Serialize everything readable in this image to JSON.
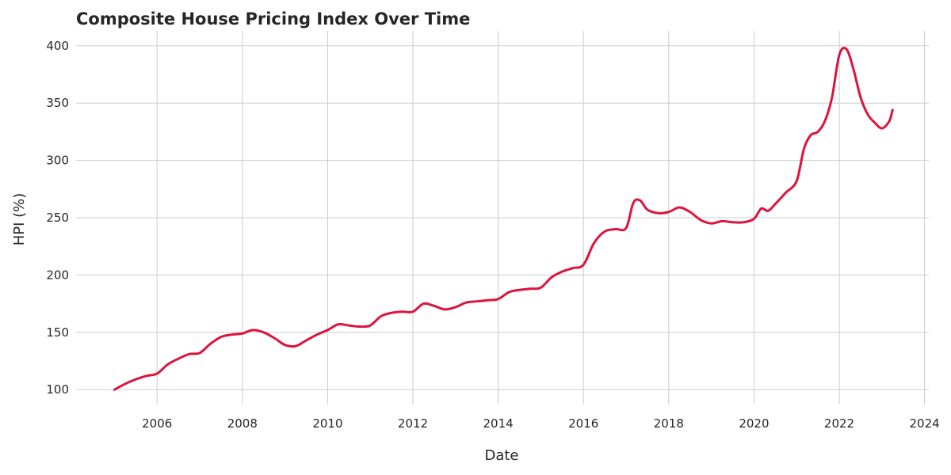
{
  "chart_data": {
    "type": "line",
    "title": "Composite House Pricing Index Over Time",
    "xlabel": "Date",
    "ylabel": "HPI (%)",
    "xlim": [
      2004.1,
      2024.1
    ],
    "ylim": [
      87,
      413
    ],
    "x_ticks": [
      2006,
      2008,
      2010,
      2012,
      2014,
      2016,
      2018,
      2020,
      2022,
      2024
    ],
    "x_tick_labels": [
      "2006",
      "2008",
      "2010",
      "2012",
      "2014",
      "2016",
      "2018",
      "2020",
      "2022",
      "2024"
    ],
    "y_ticks": [
      100,
      150,
      200,
      250,
      300,
      350,
      400
    ],
    "y_tick_labels": [
      "100",
      "150",
      "200",
      "250",
      "300",
      "350",
      "400"
    ],
    "grid": true,
    "series": [
      {
        "color": "#dc143c",
        "x": [
          2005.0,
          2005.25,
          2005.5,
          2005.75,
          2006.0,
          2006.25,
          2006.5,
          2006.75,
          2007.0,
          2007.25,
          2007.5,
          2007.75,
          2008.0,
          2008.25,
          2008.5,
          2008.75,
          2009.0,
          2009.25,
          2009.5,
          2009.75,
          2010.0,
          2010.25,
          2010.5,
          2010.75,
          2011.0,
          2011.25,
          2011.5,
          2011.75,
          2012.0,
          2012.25,
          2012.5,
          2012.75,
          2013.0,
          2013.25,
          2013.5,
          2013.75,
          2014.0,
          2014.25,
          2014.5,
          2014.75,
          2015.0,
          2015.25,
          2015.5,
          2015.75,
          2016.0,
          2016.25,
          2016.5,
          2016.75,
          2017.0,
          2017.17,
          2017.33,
          2017.5,
          2017.75,
          2018.0,
          2018.25,
          2018.5,
          2018.75,
          2019.0,
          2019.25,
          2019.5,
          2019.75,
          2020.0,
          2020.17,
          2020.33,
          2020.5,
          2020.75,
          2021.0,
          2021.17,
          2021.33,
          2021.5,
          2021.67,
          2021.83,
          2022.0,
          2022.17,
          2022.33,
          2022.5,
          2022.67,
          2022.83,
          2023.0,
          2023.17,
          2023.25
        ],
        "y": [
          100,
          105,
          109,
          112,
          114,
          122,
          127,
          131,
          132,
          140,
          146,
          148,
          149,
          152,
          150,
          145,
          139,
          138,
          143,
          148,
          152,
          157,
          156,
          155,
          156,
          164,
          167,
          168,
          168,
          175,
          173,
          170,
          172,
          176,
          177,
          178,
          179,
          185,
          187,
          188,
          189,
          198,
          203,
          206,
          209,
          228,
          238,
          240,
          241,
          263,
          265,
          257,
          254,
          255,
          259,
          255,
          248,
          245,
          247,
          246,
          246,
          249,
          258,
          256,
          262,
          272,
          282,
          310,
          322,
          325,
          335,
          355,
          392,
          397,
          380,
          355,
          340,
          333,
          328,
          334,
          344
        ]
      }
    ]
  }
}
